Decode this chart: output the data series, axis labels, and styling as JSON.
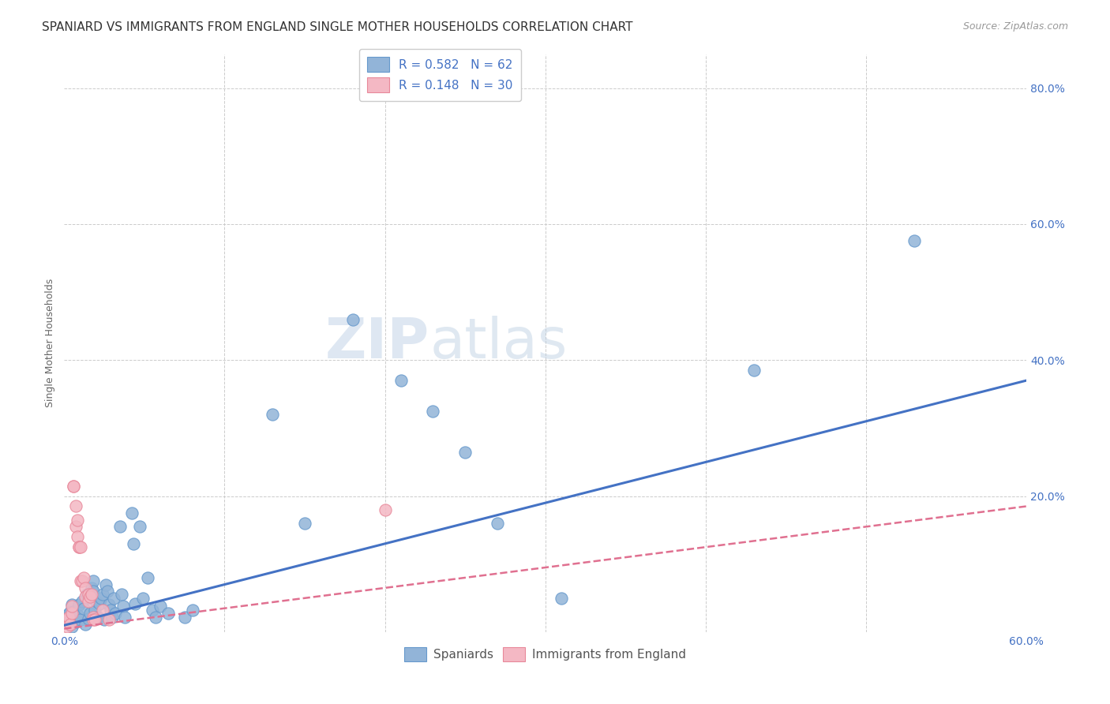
{
  "title": "SPANIARD VS IMMIGRANTS FROM ENGLAND SINGLE MOTHER HOUSEHOLDS CORRELATION CHART",
  "source": "Source: ZipAtlas.com",
  "ylabel": "Single Mother Households",
  "xlim": [
    0,
    0.6
  ],
  "ylim": [
    0,
    0.85
  ],
  "blue_R": 0.582,
  "blue_N": 62,
  "pink_R": 0.148,
  "pink_N": 30,
  "blue_color": "#92b4d8",
  "blue_edge": "#6699cc",
  "pink_color": "#f4b8c4",
  "pink_edge": "#e8889a",
  "blue_line_color": "#4472c4",
  "pink_line_color": "#e07090",
  "watermark_color": "#dce8f5",
  "grid_color": "#cccccc",
  "tick_label_color": "#4472c4",
  "ylabel_color": "#666666",
  "title_color": "#333333",
  "source_color": "#999999",
  "background_color": "#ffffff",
  "title_fontsize": 11,
  "axis_label_fontsize": 9,
  "tick_fontsize": 10,
  "legend_fontsize": 11,
  "blue_scatter": [
    [
      0.001,
      0.02
    ],
    [
      0.002,
      0.025
    ],
    [
      0.003,
      0.015
    ],
    [
      0.004,
      0.03
    ],
    [
      0.005,
      0.04
    ],
    [
      0.005,
      0.008
    ],
    [
      0.006,
      0.03
    ],
    [
      0.007,
      0.02
    ],
    [
      0.007,
      0.015
    ],
    [
      0.008,
      0.025
    ],
    [
      0.009,
      0.04
    ],
    [
      0.01,
      0.018
    ],
    [
      0.011,
      0.045
    ],
    [
      0.012,
      0.035
    ],
    [
      0.013,
      0.012
    ],
    [
      0.014,
      0.055
    ],
    [
      0.015,
      0.02
    ],
    [
      0.016,
      0.028
    ],
    [
      0.017,
      0.065
    ],
    [
      0.017,
      0.05
    ],
    [
      0.018,
      0.075
    ],
    [
      0.018,
      0.06
    ],
    [
      0.019,
      0.032
    ],
    [
      0.02,
      0.045
    ],
    [
      0.021,
      0.022
    ],
    [
      0.022,
      0.042
    ],
    [
      0.023,
      0.05
    ],
    [
      0.024,
      0.055
    ],
    [
      0.025,
      0.018
    ],
    [
      0.026,
      0.07
    ],
    [
      0.027,
      0.06
    ],
    [
      0.028,
      0.04
    ],
    [
      0.029,
      0.032
    ],
    [
      0.03,
      0.022
    ],
    [
      0.031,
      0.05
    ],
    [
      0.032,
      0.028
    ],
    [
      0.035,
      0.155
    ],
    [
      0.036,
      0.055
    ],
    [
      0.037,
      0.038
    ],
    [
      0.038,
      0.022
    ],
    [
      0.042,
      0.175
    ],
    [
      0.043,
      0.13
    ],
    [
      0.044,
      0.042
    ],
    [
      0.047,
      0.155
    ],
    [
      0.049,
      0.05
    ],
    [
      0.052,
      0.08
    ],
    [
      0.055,
      0.032
    ],
    [
      0.057,
      0.022
    ],
    [
      0.06,
      0.038
    ],
    [
      0.065,
      0.028
    ],
    [
      0.075,
      0.022
    ],
    [
      0.08,
      0.032
    ],
    [
      0.13,
      0.32
    ],
    [
      0.15,
      0.16
    ],
    [
      0.18,
      0.46
    ],
    [
      0.21,
      0.37
    ],
    [
      0.23,
      0.325
    ],
    [
      0.25,
      0.265
    ],
    [
      0.27,
      0.16
    ],
    [
      0.31,
      0.05
    ],
    [
      0.43,
      0.385
    ],
    [
      0.53,
      0.575
    ]
  ],
  "pink_scatter": [
    [
      0.001,
      0.018
    ],
    [
      0.002,
      0.008
    ],
    [
      0.003,
      0.022
    ],
    [
      0.004,
      0.012
    ],
    [
      0.005,
      0.028
    ],
    [
      0.005,
      0.038
    ],
    [
      0.006,
      0.215
    ],
    [
      0.006,
      0.215
    ],
    [
      0.007,
      0.185
    ],
    [
      0.007,
      0.155
    ],
    [
      0.008,
      0.165
    ],
    [
      0.008,
      0.14
    ],
    [
      0.009,
      0.125
    ],
    [
      0.009,
      0.125
    ],
    [
      0.01,
      0.125
    ],
    [
      0.01,
      0.075
    ],
    [
      0.011,
      0.075
    ],
    [
      0.012,
      0.08
    ],
    [
      0.013,
      0.065
    ],
    [
      0.013,
      0.052
    ],
    [
      0.015,
      0.055
    ],
    [
      0.015,
      0.045
    ],
    [
      0.016,
      0.052
    ],
    [
      0.017,
      0.055
    ],
    [
      0.018,
      0.022
    ],
    [
      0.018,
      0.018
    ],
    [
      0.019,
      0.018
    ],
    [
      0.024,
      0.032
    ],
    [
      0.028,
      0.018
    ],
    [
      0.2,
      0.18
    ]
  ],
  "blue_line": [
    [
      0,
      0.01
    ],
    [
      0.6,
      0.37
    ]
  ],
  "pink_line": [
    [
      0,
      0.005
    ],
    [
      0.6,
      0.185
    ]
  ]
}
